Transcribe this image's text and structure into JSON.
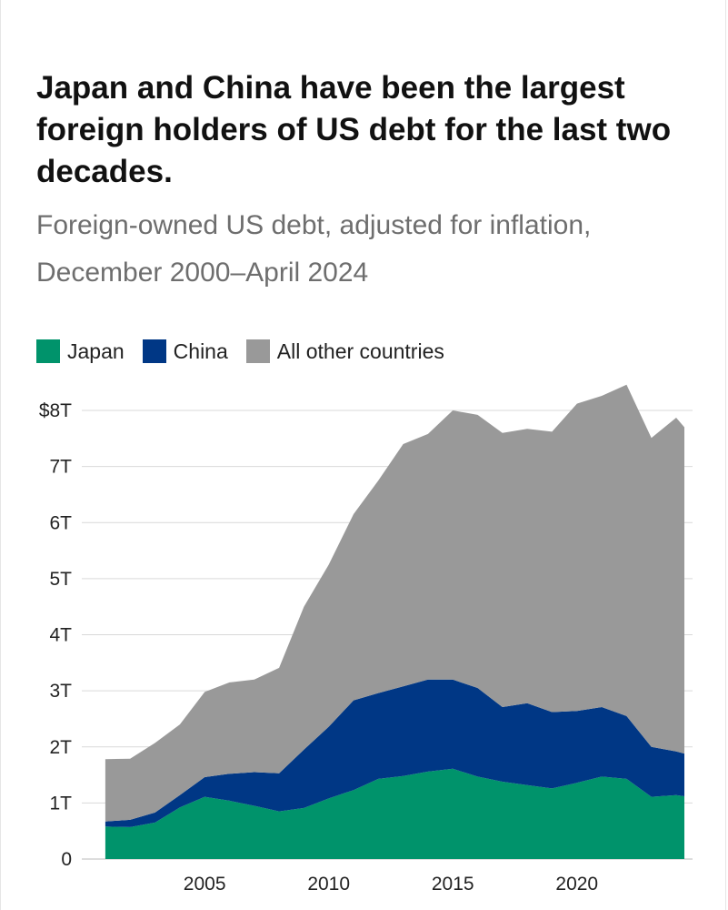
{
  "title": "Japan and China have been the largest foreign holders of US debt for the last two decades.",
  "subtitle": "Foreign-owned US debt, adjusted for inflation, December 2000–April 2024",
  "colors": {
    "japan": "#00936b",
    "china": "#003785",
    "other": "#999999",
    "grid": "#d9d9d9"
  },
  "chart_data": {
    "type": "area",
    "stacked": true,
    "title": "Japan and China have been the largest foreign holders of US debt for the last two decades.",
    "subtitle": "Foreign-owned US debt, adjusted for inflation, December 2000–April 2024",
    "xlabel": "",
    "ylabel": "",
    "x": [
      2001,
      2002,
      2003,
      2004,
      2005,
      2006,
      2007,
      2008,
      2009,
      2010,
      2011,
      2012,
      2013,
      2014,
      2015,
      2016,
      2017,
      2018,
      2019,
      2020,
      2021,
      2022,
      2023,
      2024,
      2024.33
    ],
    "series": [
      {
        "name": "Japan",
        "values": [
          0.58,
          0.57,
          0.65,
          0.92,
          1.11,
          1.04,
          0.95,
          0.85,
          0.91,
          1.08,
          1.23,
          1.43,
          1.48,
          1.56,
          1.61,
          1.47,
          1.38,
          1.32,
          1.26,
          1.36,
          1.47,
          1.43,
          1.11,
          1.14,
          1.12
        ]
      },
      {
        "name": "China",
        "values": [
          0.09,
          0.13,
          0.18,
          0.22,
          0.35,
          0.48,
          0.6,
          0.68,
          1.04,
          1.28,
          1.6,
          1.53,
          1.6,
          1.64,
          1.59,
          1.58,
          1.33,
          1.46,
          1.36,
          1.28,
          1.24,
          1.12,
          0.89,
          0.78,
          0.76
        ]
      },
      {
        "name": "All other countries",
        "values": [
          1.11,
          1.09,
          1.24,
          1.26,
          1.52,
          1.63,
          1.65,
          1.88,
          2.55,
          2.89,
          3.32,
          3.79,
          4.32,
          4.38,
          4.8,
          4.87,
          4.89,
          4.89,
          5.0,
          5.48,
          5.55,
          5.91,
          5.51,
          5.95,
          5.82
        ]
      }
    ],
    "legend": [
      "Japan",
      "China",
      "All other countries"
    ],
    "legend_position": "top-left",
    "y_ticks": [
      0,
      1,
      2,
      3,
      4,
      5,
      6,
      7,
      8
    ],
    "y_tick_labels": [
      "0",
      "1T",
      "2T",
      "3T",
      "4T",
      "5T",
      "6T",
      "7T",
      "$8T"
    ],
    "x_ticks": [
      2005,
      2010,
      2015,
      2020
    ],
    "x_tick_labels": [
      "2005",
      "2010",
      "2015",
      "2020"
    ],
    "xlim": [
      2000.05,
      2024.66
    ],
    "ylim": [
      0,
      8
    ],
    "grid": true
  }
}
